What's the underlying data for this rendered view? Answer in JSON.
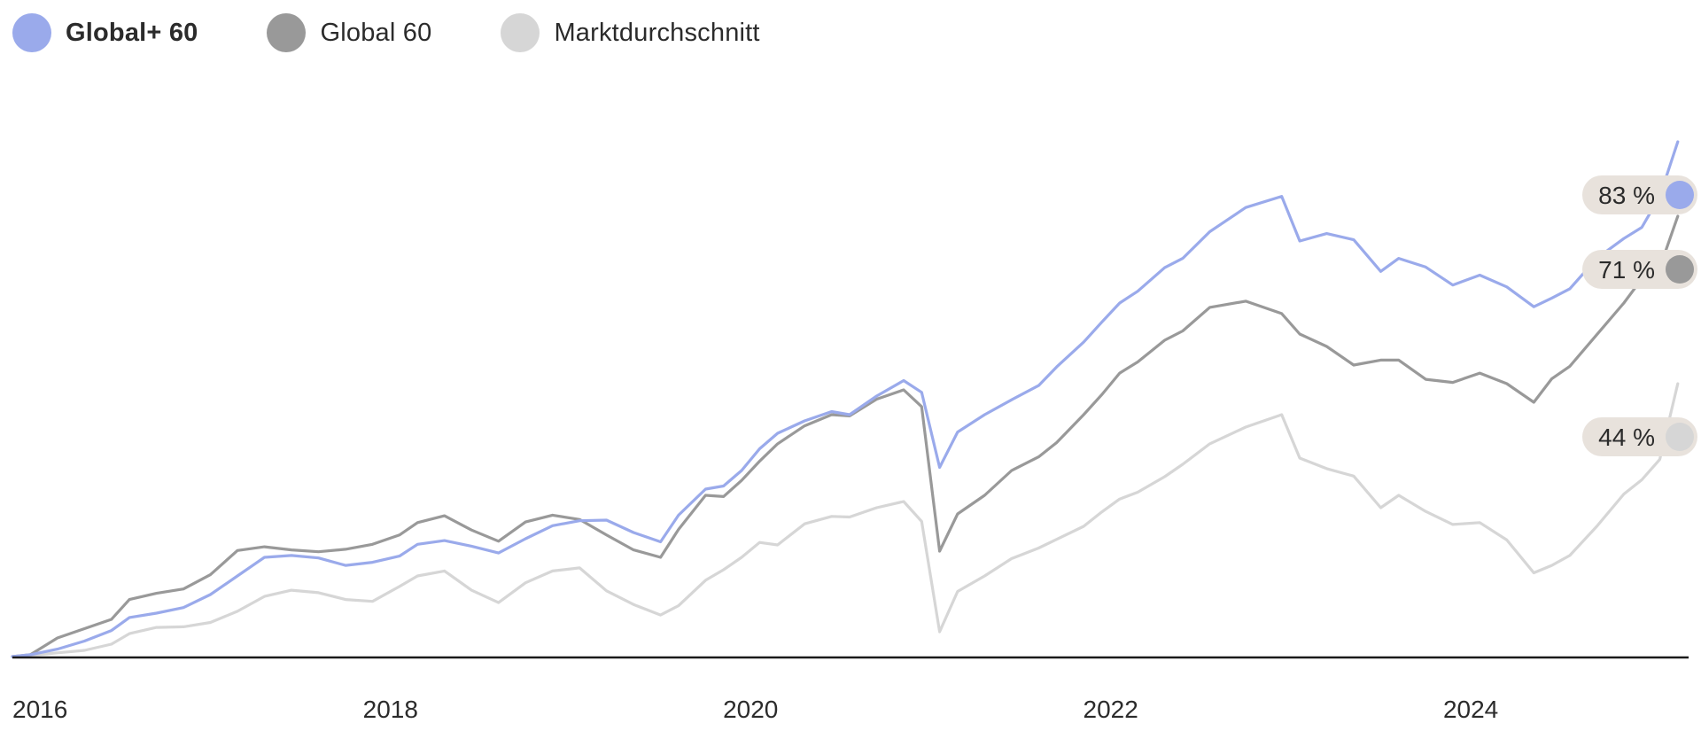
{
  "legend": {
    "items": [
      {
        "label": "Global+ 60",
        "color": "#9aaaeb",
        "bold": true
      },
      {
        "label": "Global 60",
        "color": "#999999",
        "bold": false
      },
      {
        "label": "Marktdurchschnitt",
        "color": "#d6d6d6",
        "bold": false
      }
    ]
  },
  "chart_data": {
    "type": "line",
    "title": "",
    "xlabel": "",
    "ylabel": "",
    "x_ticks": [
      "2016",
      "2018",
      "2020",
      "2022",
      "2024"
    ],
    "x_range": [
      2015.9,
      2025.2
    ],
    "ylim": [
      0,
      1
    ],
    "grid": false,
    "legend_position": "top-left",
    "end_label_background": "#e8e2dc",
    "axis_color": "#1a1a1a",
    "series": [
      {
        "name": "Global+ 60",
        "color": "#9aaaeb",
        "end_label": "83 %",
        "points": [
          [
            2015.9,
            0
          ],
          [
            2016.0,
            0.003
          ],
          [
            2016.15,
            0.012
          ],
          [
            2016.3,
            0.025
          ],
          [
            2016.45,
            0.042
          ],
          [
            2016.55,
            0.063
          ],
          [
            2016.7,
            0.07
          ],
          [
            2016.85,
            0.079
          ],
          [
            2017.0,
            0.1
          ],
          [
            2017.15,
            0.13
          ],
          [
            2017.3,
            0.16
          ],
          [
            2017.45,
            0.163
          ],
          [
            2017.6,
            0.159
          ],
          [
            2017.75,
            0.147
          ],
          [
            2017.9,
            0.152
          ],
          [
            2018.05,
            0.162
          ],
          [
            2018.15,
            0.181
          ],
          [
            2018.3,
            0.187
          ],
          [
            2018.45,
            0.178
          ],
          [
            2018.6,
            0.167
          ],
          [
            2018.75,
            0.19
          ],
          [
            2018.9,
            0.211
          ],
          [
            2019.05,
            0.219
          ],
          [
            2019.2,
            0.22
          ],
          [
            2019.35,
            0.2
          ],
          [
            2019.5,
            0.185
          ],
          [
            2019.6,
            0.228
          ],
          [
            2019.75,
            0.27
          ],
          [
            2019.85,
            0.275
          ],
          [
            2019.95,
            0.3
          ],
          [
            2020.05,
            0.335
          ],
          [
            2020.15,
            0.36
          ],
          [
            2020.3,
            0.38
          ],
          [
            2020.45,
            0.395
          ],
          [
            2020.55,
            0.39
          ],
          [
            2020.7,
            0.42
          ],
          [
            2020.85,
            0.445
          ],
          [
            2020.95,
            0.426
          ],
          [
            2021.05,
            0.305
          ],
          [
            2021.15,
            0.362
          ],
          [
            2021.3,
            0.39
          ],
          [
            2021.45,
            0.414
          ],
          [
            2021.6,
            0.437
          ],
          [
            2021.7,
            0.467
          ],
          [
            2021.85,
            0.507
          ],
          [
            2021.95,
            0.539
          ],
          [
            2022.05,
            0.57
          ],
          [
            2022.15,
            0.589
          ],
          [
            2022.3,
            0.627
          ],
          [
            2022.4,
            0.642
          ],
          [
            2022.55,
            0.685
          ],
          [
            2022.75,
            0.724
          ],
          [
            2022.95,
            0.742
          ],
          [
            2023.05,
            0.67
          ],
          [
            2023.2,
            0.682
          ],
          [
            2023.35,
            0.672
          ],
          [
            2023.5,
            0.621
          ],
          [
            2023.6,
            0.642
          ],
          [
            2023.75,
            0.628
          ],
          [
            2023.9,
            0.599
          ],
          [
            2024.05,
            0.615
          ],
          [
            2024.2,
            0.596
          ],
          [
            2024.35,
            0.564
          ],
          [
            2024.45,
            0.578
          ],
          [
            2024.55,
            0.593
          ],
          [
            2024.7,
            0.642
          ],
          [
            2024.85,
            0.674
          ],
          [
            2024.95,
            0.692
          ],
          [
            2025.05,
            0.742
          ],
          [
            2025.15,
            0.83
          ]
        ]
      },
      {
        "name": "Global 60",
        "color": "#999999",
        "end_label": "71 %",
        "points": [
          [
            2015.9,
            0
          ],
          [
            2016.0,
            0.003
          ],
          [
            2016.15,
            0.03
          ],
          [
            2016.3,
            0.045
          ],
          [
            2016.45,
            0.06
          ],
          [
            2016.55,
            0.092
          ],
          [
            2016.7,
            0.102
          ],
          [
            2016.85,
            0.109
          ],
          [
            2017.0,
            0.132
          ],
          [
            2017.15,
            0.171
          ],
          [
            2017.3,
            0.177
          ],
          [
            2017.45,
            0.172
          ],
          [
            2017.6,
            0.169
          ],
          [
            2017.75,
            0.173
          ],
          [
            2017.9,
            0.181
          ],
          [
            2018.05,
            0.196
          ],
          [
            2018.15,
            0.216
          ],
          [
            2018.3,
            0.227
          ],
          [
            2018.45,
            0.204
          ],
          [
            2018.6,
            0.186
          ],
          [
            2018.75,
            0.217
          ],
          [
            2018.9,
            0.228
          ],
          [
            2019.05,
            0.221
          ],
          [
            2019.2,
            0.196
          ],
          [
            2019.35,
            0.172
          ],
          [
            2019.5,
            0.16
          ],
          [
            2019.6,
            0.205
          ],
          [
            2019.75,
            0.26
          ],
          [
            2019.85,
            0.258
          ],
          [
            2019.95,
            0.284
          ],
          [
            2020.05,
            0.315
          ],
          [
            2020.15,
            0.343
          ],
          [
            2020.3,
            0.372
          ],
          [
            2020.45,
            0.39
          ],
          [
            2020.55,
            0.388
          ],
          [
            2020.7,
            0.415
          ],
          [
            2020.85,
            0.43
          ],
          [
            2020.95,
            0.403
          ],
          [
            2021.05,
            0.17
          ],
          [
            2021.15,
            0.23
          ],
          [
            2021.3,
            0.26
          ],
          [
            2021.45,
            0.3
          ],
          [
            2021.6,
            0.322
          ],
          [
            2021.7,
            0.345
          ],
          [
            2021.85,
            0.39
          ],
          [
            2021.95,
            0.422
          ],
          [
            2022.05,
            0.457
          ],
          [
            2022.15,
            0.475
          ],
          [
            2022.3,
            0.51
          ],
          [
            2022.4,
            0.525
          ],
          [
            2022.55,
            0.563
          ],
          [
            2022.75,
            0.573
          ],
          [
            2022.95,
            0.553
          ],
          [
            2023.05,
            0.52
          ],
          [
            2023.2,
            0.5
          ],
          [
            2023.35,
            0.47
          ],
          [
            2023.5,
            0.478
          ],
          [
            2023.6,
            0.478
          ],
          [
            2023.75,
            0.447
          ],
          [
            2023.9,
            0.442
          ],
          [
            2024.05,
            0.457
          ],
          [
            2024.2,
            0.44
          ],
          [
            2024.35,
            0.41
          ],
          [
            2024.45,
            0.448
          ],
          [
            2024.55,
            0.468
          ],
          [
            2024.7,
            0.519
          ],
          [
            2024.85,
            0.57
          ],
          [
            2024.95,
            0.609
          ],
          [
            2025.05,
            0.627
          ],
          [
            2025.15,
            0.71
          ]
        ]
      },
      {
        "name": "Marktdurchschnitt",
        "color": "#d6d6d6",
        "end_label": "44 %",
        "points": [
          [
            2015.9,
            0
          ],
          [
            2016.0,
            0.002
          ],
          [
            2016.15,
            0.006
          ],
          [
            2016.3,
            0.01
          ],
          [
            2016.45,
            0.02
          ],
          [
            2016.55,
            0.037
          ],
          [
            2016.7,
            0.047
          ],
          [
            2016.85,
            0.048
          ],
          [
            2017.0,
            0.055
          ],
          [
            2017.15,
            0.073
          ],
          [
            2017.3,
            0.097
          ],
          [
            2017.45,
            0.107
          ],
          [
            2017.6,
            0.103
          ],
          [
            2017.75,
            0.092
          ],
          [
            2017.9,
            0.089
          ],
          [
            2018.05,
            0.113
          ],
          [
            2018.15,
            0.13
          ],
          [
            2018.3,
            0.138
          ],
          [
            2018.45,
            0.107
          ],
          [
            2018.6,
            0.087
          ],
          [
            2018.75,
            0.119
          ],
          [
            2018.9,
            0.138
          ],
          [
            2019.05,
            0.143
          ],
          [
            2019.2,
            0.106
          ],
          [
            2019.35,
            0.084
          ],
          [
            2019.5,
            0.067
          ],
          [
            2019.6,
            0.082
          ],
          [
            2019.75,
            0.123
          ],
          [
            2019.85,
            0.14
          ],
          [
            2019.95,
            0.16
          ],
          [
            2020.05,
            0.184
          ],
          [
            2020.15,
            0.18
          ],
          [
            2020.3,
            0.214
          ],
          [
            2020.45,
            0.226
          ],
          [
            2020.55,
            0.225
          ],
          [
            2020.7,
            0.24
          ],
          [
            2020.85,
            0.25
          ],
          [
            2020.95,
            0.218
          ],
          [
            2021.05,
            0.04
          ],
          [
            2021.15,
            0.105
          ],
          [
            2021.3,
            0.13
          ],
          [
            2021.45,
            0.158
          ],
          [
            2021.6,
            0.175
          ],
          [
            2021.7,
            0.189
          ],
          [
            2021.85,
            0.21
          ],
          [
            2021.95,
            0.233
          ],
          [
            2022.05,
            0.254
          ],
          [
            2022.15,
            0.265
          ],
          [
            2022.3,
            0.29
          ],
          [
            2022.4,
            0.31
          ],
          [
            2022.55,
            0.343
          ],
          [
            2022.75,
            0.37
          ],
          [
            2022.95,
            0.39
          ],
          [
            2023.05,
            0.32
          ],
          [
            2023.2,
            0.303
          ],
          [
            2023.35,
            0.291
          ],
          [
            2023.5,
            0.24
          ],
          [
            2023.6,
            0.26
          ],
          [
            2023.75,
            0.234
          ],
          [
            2023.9,
            0.213
          ],
          [
            2024.05,
            0.216
          ],
          [
            2024.2,
            0.188
          ],
          [
            2024.35,
            0.135
          ],
          [
            2024.45,
            0.147
          ],
          [
            2024.55,
            0.163
          ],
          [
            2024.7,
            0.21
          ],
          [
            2024.85,
            0.262
          ],
          [
            2024.95,
            0.285
          ],
          [
            2025.05,
            0.318
          ],
          [
            2025.15,
            0.44
          ]
        ]
      }
    ]
  }
}
